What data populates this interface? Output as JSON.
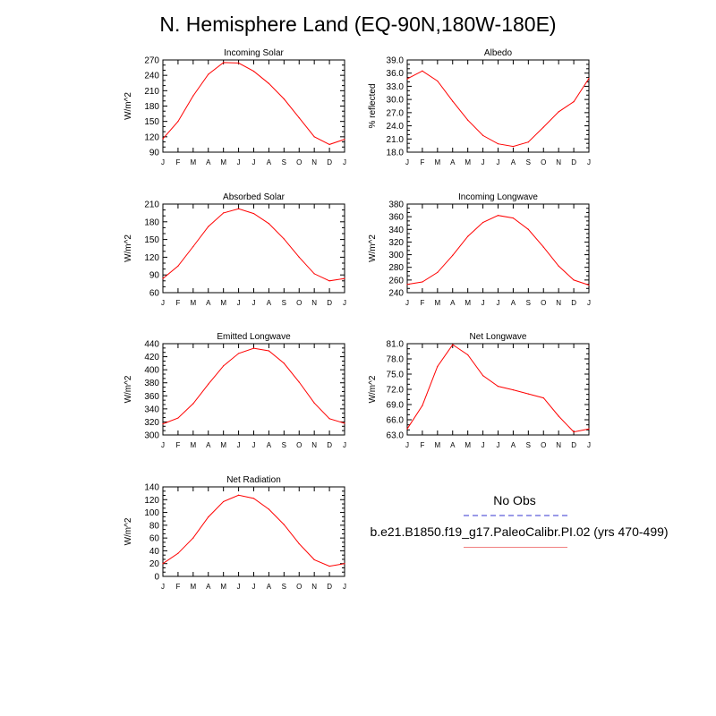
{
  "title": "N. Hemisphere Land (EQ-90N,180W-180E)",
  "legend": {
    "obs_label": "No Obs",
    "model_label": "b.e21.B1850.f19_g17.PaleoCalibr.PI.02 (yrs 470-499)",
    "obs_color": "#9a9ae8",
    "model_color": "#f08080"
  },
  "chart_data": [
    {
      "type": "line",
      "title": "Incoming Solar",
      "ylabel": "W/m^2",
      "categories": [
        "J",
        "F",
        "M",
        "A",
        "M",
        "J",
        "J",
        "A",
        "S",
        "O",
        "N",
        "D",
        "J"
      ],
      "ylim": [
        90,
        270
      ],
      "yticks": [
        "90",
        "120",
        "150",
        "180",
        "210",
        "240",
        "270"
      ],
      "series": [
        {
          "name": "b.e21.B1850.f19_g17.PaleoCalibr.PI.02",
          "color": "#ff0000",
          "values": [
            116,
            150,
            200,
            242,
            265,
            264,
            248,
            224,
            194,
            157,
            120,
            105,
            115
          ]
        }
      ]
    },
    {
      "type": "line",
      "title": "Albedo",
      "ylabel": "% reflected",
      "categories": [
        "J",
        "F",
        "M",
        "A",
        "M",
        "J",
        "J",
        "A",
        "S",
        "O",
        "N",
        "D",
        "J"
      ],
      "ylim": [
        18,
        39
      ],
      "yticks": [
        "18.0",
        "21.0",
        "24.0",
        "27.0",
        "30.0",
        "33.0",
        "36.0",
        "39.0"
      ],
      "series": [
        {
          "name": "b.e21.B1850.f19_g17.PaleoCalibr.PI.02",
          "color": "#ff0000",
          "values": [
            34.7,
            36.5,
            34.2,
            29.6,
            25.3,
            21.8,
            19.9,
            19.3,
            20.3,
            23.7,
            27.2,
            29.5,
            34.8
          ]
        }
      ]
    },
    {
      "type": "line",
      "title": "Absorbed Solar",
      "ylabel": "W/m^2",
      "categories": [
        "J",
        "F",
        "M",
        "A",
        "M",
        "J",
        "J",
        "A",
        "S",
        "O",
        "N",
        "D",
        "J"
      ],
      "ylim": [
        60,
        210
      ],
      "yticks": [
        "60",
        "90",
        "120",
        "150",
        "180",
        "210"
      ],
      "series": [
        {
          "name": "b.e21.B1850.f19_g17.PaleoCalibr.PI.02",
          "color": "#ff0000",
          "values": [
            84,
            105,
            138,
            172,
            195,
            202,
            194,
            177,
            151,
            120,
            92,
            80,
            84
          ]
        }
      ]
    },
    {
      "type": "line",
      "title": "Incoming Longwave",
      "ylabel": "W/m^2",
      "categories": [
        "J",
        "F",
        "M",
        "A",
        "M",
        "J",
        "J",
        "A",
        "S",
        "O",
        "N",
        "D",
        "J"
      ],
      "ylim": [
        240,
        380
      ],
      "yticks": [
        "240",
        "260",
        "280",
        "300",
        "320",
        "340",
        "360",
        "380"
      ],
      "series": [
        {
          "name": "b.e21.B1850.f19_g17.PaleoCalibr.PI.02",
          "color": "#ff0000",
          "values": [
            253,
            257,
            272,
            299,
            329,
            351,
            362,
            358,
            340,
            312,
            282,
            260,
            252
          ]
        }
      ]
    },
    {
      "type": "line",
      "title": "Emitted Longwave",
      "ylabel": "W/m^2",
      "categories": [
        "J",
        "F",
        "M",
        "A",
        "M",
        "J",
        "J",
        "A",
        "S",
        "O",
        "N",
        "D",
        "J"
      ],
      "ylim": [
        300,
        440
      ],
      "yticks": [
        "300",
        "320",
        "340",
        "360",
        "380",
        "400",
        "420",
        "440"
      ],
      "series": [
        {
          "name": "b.e21.B1850.f19_g17.PaleoCalibr.PI.02",
          "color": "#ff0000",
          "values": [
            317,
            326,
            348,
            378,
            406,
            425,
            433,
            429,
            410,
            381,
            349,
            325,
            318
          ]
        }
      ]
    },
    {
      "type": "line",
      "title": "Net Longwave",
      "ylabel": "W/m^2",
      "categories": [
        "J",
        "F",
        "M",
        "A",
        "M",
        "J",
        "J",
        "A",
        "S",
        "O",
        "N",
        "D",
        "J"
      ],
      "ylim": [
        63,
        81
      ],
      "yticks": [
        "63.0",
        "66.0",
        "69.0",
        "72.0",
        "75.0",
        "78.0",
        "81.0"
      ],
      "series": [
        {
          "name": "b.e21.B1850.f19_g17.PaleoCalibr.PI.02",
          "color": "#ff0000",
          "values": [
            64.2,
            68.8,
            76.5,
            80.8,
            78.8,
            74.7,
            72.6,
            71.9,
            71.1,
            70.3,
            66.7,
            63.6,
            64.2
          ]
        }
      ]
    },
    {
      "type": "line",
      "title": "Net Radiation",
      "ylabel": "W/m^2",
      "categories": [
        "J",
        "F",
        "M",
        "A",
        "M",
        "J",
        "J",
        "A",
        "S",
        "O",
        "N",
        "D",
        "J"
      ],
      "ylim": [
        0,
        140
      ],
      "yticks": [
        "0",
        "20",
        "40",
        "60",
        "80",
        "100",
        "120",
        "140"
      ],
      "series": [
        {
          "name": "b.e21.B1850.f19_g17.PaleoCalibr.PI.02",
          "color": "#ff0000",
          "values": [
            20,
            36,
            60,
            93,
            117,
            127,
            122,
            105,
            81,
            51,
            26,
            16,
            20
          ]
        }
      ]
    }
  ]
}
